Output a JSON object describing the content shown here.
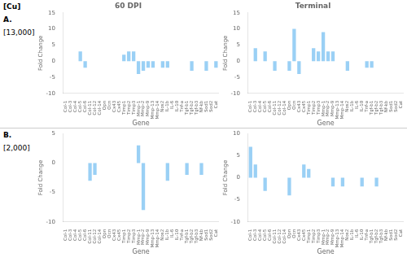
{
  "chart_data": [
    {
      "type": "bar",
      "title": "60 DPI",
      "annotations": [
        "[Cu]",
        "A.",
        "[13,000]"
      ],
      "xlabel": "Gene",
      "ylabel": "Fold Change",
      "categories": [
        "Col-1",
        "Col-3",
        "Col-4",
        "Col-5",
        "Col-6",
        "Col-11",
        "Col-12",
        "Col-14",
        "Opn",
        "Ocn",
        "Cx43",
        "Cx45",
        "Timp1",
        "Timp2",
        "Timp3",
        "Mmp-1",
        "Mmp-2",
        "Mmp-9",
        "Mmp-13",
        "Mmp-14",
        "Nos2",
        "IL-1b",
        "IL-6",
        "IL-10",
        "Tnf-a",
        "Tgf-b1",
        "Tgf-b2",
        "Tgf-b3",
        "Nf-kb",
        "Sod1",
        "Sod2",
        "Cat"
      ],
      "values": [
        0,
        0,
        0,
        3,
        -2,
        0,
        0,
        0,
        0,
        0,
        0,
        0,
        2,
        3,
        3,
        -4,
        -3,
        -2,
        -2,
        0,
        -2,
        -2,
        0,
        0,
        0,
        0,
        -3,
        0,
        0,
        -3,
        0,
        -2
      ],
      "ylim": [
        -10,
        15
      ],
      "yticks": [
        -10,
        -5,
        0,
        5,
        10,
        15
      ],
      "grid": false
    },
    {
      "type": "bar",
      "title": "Terminal",
      "xlabel": "Gene",
      "ylabel": "Fold Change",
      "categories": [
        "Col-1",
        "Col-3",
        "Col-4",
        "Col-5",
        "Col-6",
        "Col-11",
        "Col-12",
        "Col-14",
        "Opn",
        "Ocn",
        "Cx43",
        "Cx45",
        "Timp1",
        "Timp2",
        "Timp3",
        "Mmp-1",
        "Mmp-2",
        "Mmp-9",
        "Mmp-13",
        "Mmp-14",
        "Nos2",
        "IL-1b",
        "IL-6",
        "IL-10",
        "Tnf-a",
        "Tgf-b1",
        "Tgf-b2",
        "Tgf-b3",
        "Nf-kb",
        "Sod1",
        "Sod2",
        "Cat"
      ],
      "values": [
        0,
        4,
        0,
        3,
        0,
        -3,
        0,
        0,
        -3,
        10,
        -4,
        0,
        0,
        4,
        3,
        9,
        3,
        3,
        0,
        0,
        -3,
        0,
        0,
        0,
        -2,
        -2,
        0,
        0,
        0,
        0,
        0,
        0
      ],
      "ylim": [
        -10,
        15
      ],
      "yticks": [
        -10,
        -5,
        0,
        5,
        10,
        15
      ],
      "grid": false
    },
    {
      "type": "bar",
      "annotations": [
        "B.",
        "[2,000]"
      ],
      "xlabel": "Gene",
      "ylabel": "Fold Change",
      "categories": [
        "Col-1",
        "Col-3",
        "Col-4",
        "Col-5",
        "Col-6",
        "Col-11",
        "Col-12",
        "Col-14",
        "Opn",
        "Ocn",
        "Cx43",
        "Cx45",
        "Timp1",
        "Timp2",
        "Timp3",
        "Mmp-1",
        "Mmp-2",
        "Mmp-9",
        "Mmp-13",
        "Mmp-14",
        "Nos2",
        "IL-1b",
        "IL-6",
        "IL-10",
        "Tnf-a",
        "Tgf-b1",
        "Tgf-b2",
        "Tgf-b3",
        "Nf-kb",
        "Sod1",
        "Sod2",
        "Cat"
      ],
      "values": [
        0,
        0,
        0,
        0,
        0,
        -3,
        -2,
        0,
        0,
        0,
        0,
        0,
        0,
        0,
        0,
        3,
        -8,
        0,
        0,
        0,
        0,
        -3,
        0,
        0,
        0,
        -2,
        0,
        0,
        -2,
        0,
        0,
        0
      ],
      "ylim": [
        -10,
        5
      ],
      "yticks": [
        -10,
        -5,
        0,
        5
      ],
      "grid": false
    },
    {
      "type": "bar",
      "xlabel": "Gene",
      "ylabel": "Fold Change",
      "categories": [
        "Col-1",
        "Col-3",
        "Col-4",
        "Col-5",
        "Col-6",
        "Col-11",
        "Col-12",
        "Col-14",
        "Opn",
        "Ocn",
        "Cx43",
        "Cx45",
        "Timp1",
        "Timp2",
        "Timp3",
        "Mmp-1",
        "Mmp-2",
        "Mmp-9",
        "Mmp-13",
        "Mmp-14",
        "Nos2",
        "IL-1b",
        "IL-6",
        "IL-10",
        "Tnf-a",
        "Tgf-b1",
        "Tgf-b2",
        "Tgf-b3",
        "Nf-kb",
        "Sod1",
        "Sod2",
        "Cat"
      ],
      "values": [
        7,
        3,
        0,
        -3,
        0,
        0,
        0,
        0,
        -4,
        0,
        0,
        3,
        2,
        0,
        0,
        0,
        0,
        -2,
        0,
        -2,
        0,
        0,
        0,
        -2,
        0,
        0,
        -2,
        0,
        0,
        0,
        0,
        0
      ],
      "ylim": [
        -10,
        10
      ],
      "yticks": [
        -10,
        -5,
        0,
        5,
        10
      ],
      "grid": false
    }
  ]
}
